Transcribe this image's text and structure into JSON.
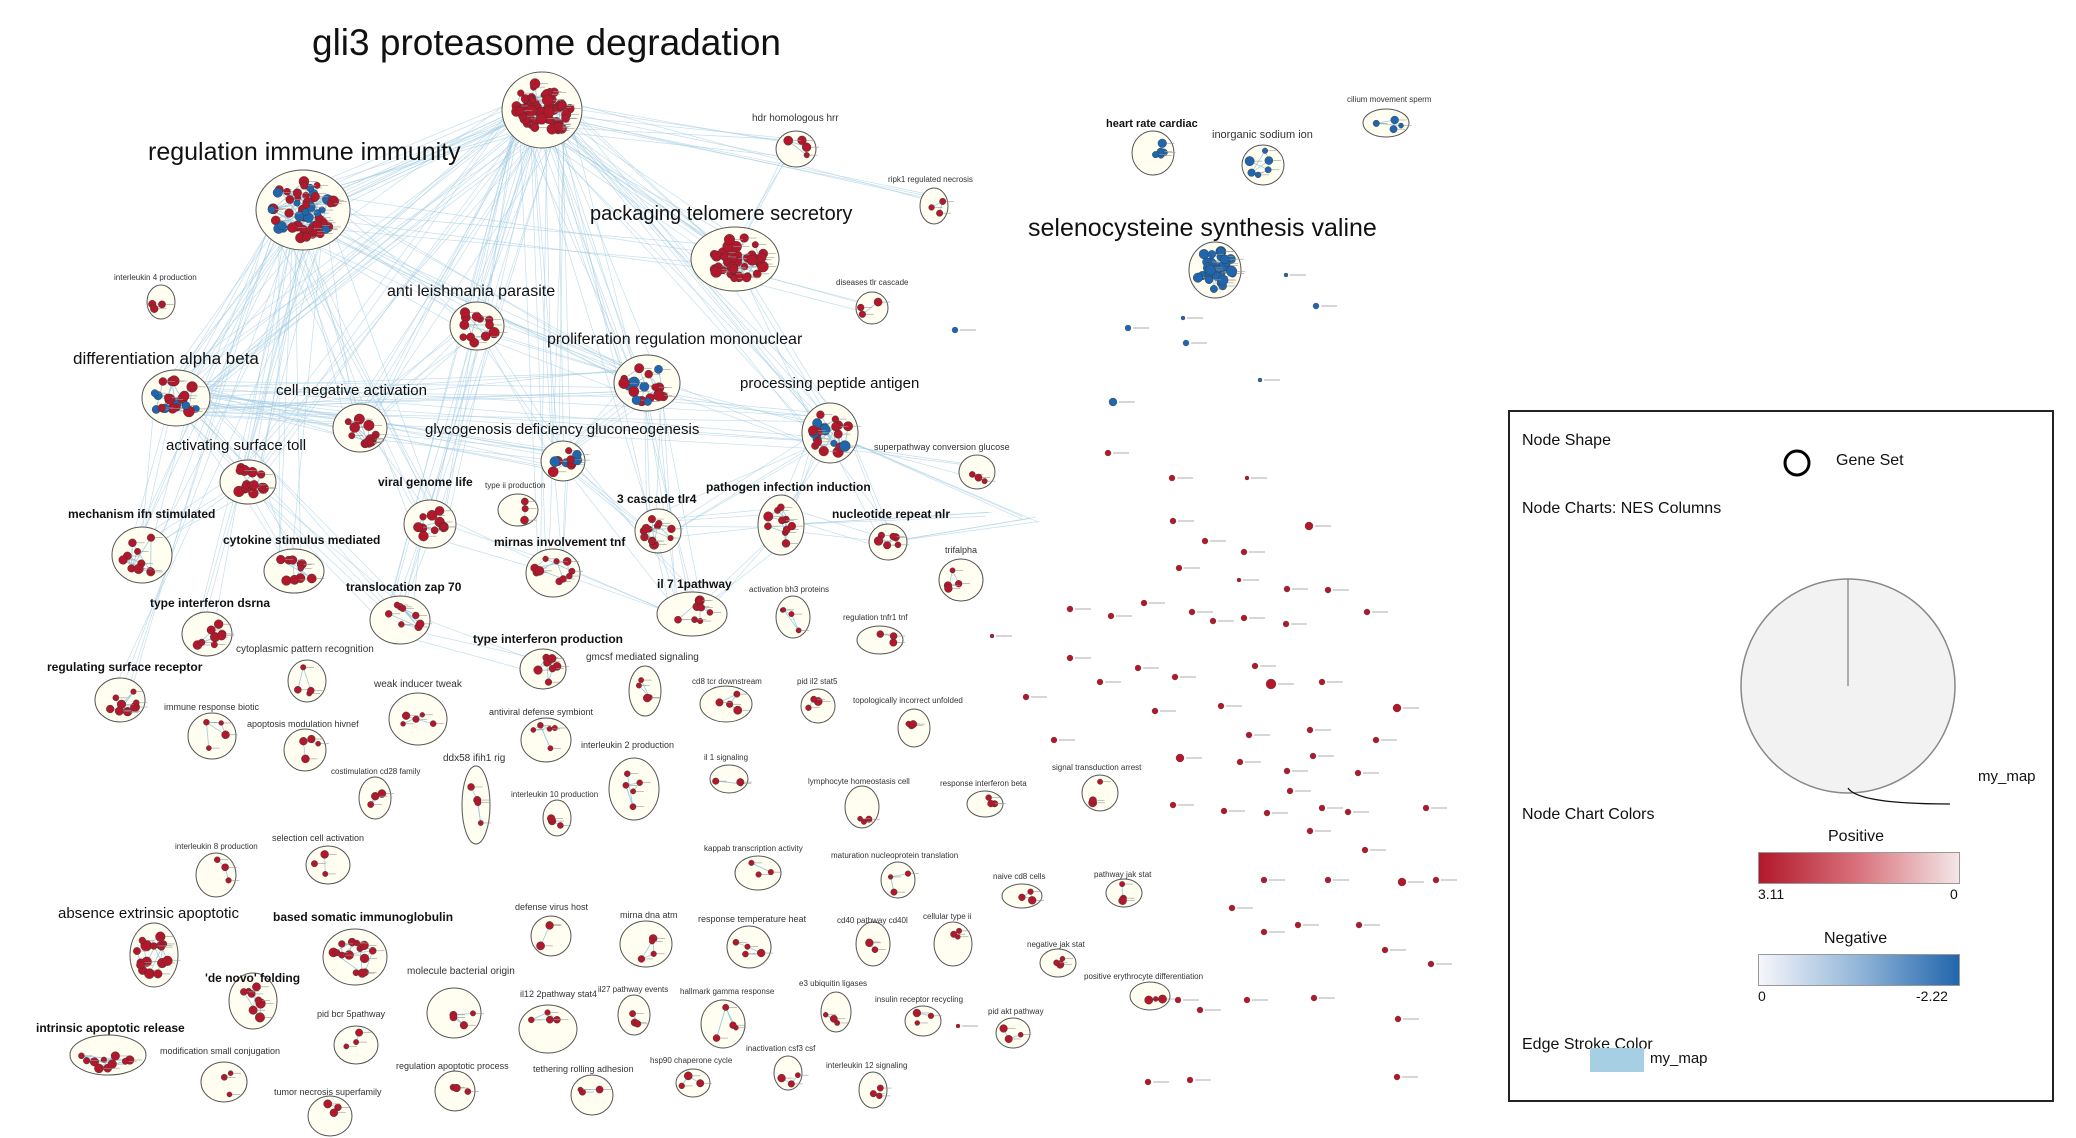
{
  "colors": {
    "positive": "#b2182b",
    "negative": "#2166ac",
    "edge": "#9ecae1",
    "cluster_fill": "#fffef0",
    "pie_fill": "#f0f0f0"
  },
  "clusters": {
    "gli3": "gli3 proteasome degradation",
    "regulation_immune": "regulation immune immunity",
    "packaging_telomere": "packaging telomere secretory",
    "selenocysteine": "selenocysteine synthesis valine",
    "anti_leishmania": "anti leishmania parasite",
    "proliferation": "proliferation regulation mononuclear",
    "differentiation": "differentiation alpha beta",
    "processing_peptide": "processing peptide antigen",
    "cell_negative": "cell negative activation",
    "glycogenosis": "glycogenosis deficiency gluconeogenesis",
    "activating_surface": "activating surface toll",
    "absence_extrinsic": "absence extrinsic apoptotic",
    "viral_genome": "viral genome life",
    "mechanism_ifn": "mechanism ifn stimulated",
    "cytokine_stimulus": "cytokine stimulus mediated",
    "mirnas": "mirnas involvement tnf",
    "cascade_tlr4": "3 cascade tlr4",
    "pathogen_infection": "pathogen infection induction",
    "nucleotide_repeat": "nucleotide repeat nlr",
    "translocation_zap": "translocation zap 70",
    "il7": "il 7 1pathway",
    "type_interferon_dsrna": "type interferon dsrna",
    "type_interferon_production": "type interferon production",
    "regulating_surface": "regulating surface receptor",
    "based_somatic": "based somatic immunoglobulin",
    "de_novo": "'de novo' folding",
    "intrinsic_apoptotic": "intrinsic apoptotic release",
    "heart_rate": "heart rate cardiac",
    "hdr_homologous": "hdr homologous hrr",
    "inorganic_sodium": "inorganic sodium ion",
    "cilium": "cilium movement sperm",
    "ripk1": "ripk1 regulated necrosis",
    "interleukin4": "interleukin 4 production",
    "diseases_tlr": "diseases tlr cascade",
    "superpathway": "superpathway conversion glucose",
    "type_ii": "type ii production",
    "trifalpha": "trifalpha",
    "activation_bh3": "activation bh3 proteins",
    "regulation_tnfr1": "regulation tnfr1 tnf",
    "cytoplasmic": "cytoplasmic pattern recognition",
    "gmcsf": "gmcsf mediated signaling",
    "weak_inducer": "weak inducer tweak",
    "immune_response_biotic": "immune response biotic",
    "cd8_tcr": "cd8 tcr downstream",
    "pid_il2": "pid il2 stat5",
    "topologically": "topologically incorrect unfolded",
    "apoptosis_modulation": "apoptosis modulation hivnef",
    "antiviral_defense": "antiviral defense symbiont",
    "interleukin2": "interleukin 2 production",
    "ddx58": "ddx58 ifih1 rig",
    "il1_signaling": "il 1 signaling",
    "costimulation": "costimulation cd28 family",
    "interleukin10": "interleukin 10 production",
    "lymphocyte_homeostasis": "lymphocyte homeostasis cell",
    "response_interferon_beta": "response interferon beta",
    "signal_transduction": "signal transduction arrest",
    "interleukin8": "interleukin 8 production",
    "selection_cell": "selection cell activation",
    "kappab": "kappab transcription activity",
    "maturation_nucleoprotein": "maturation nucleoprotein translation",
    "naive_cd8": "naive cd8 cells",
    "pathway_jak_stat": "pathway jak stat",
    "defense_virus": "defense virus host",
    "mirna_dna_atm": "mirna dna atm",
    "response_temperature": "response temperature heat",
    "cd40": "cd40 pathway cd40l",
    "cellular_type_ii": "cellular type ii",
    "negative_jak": "negative jak stat",
    "molecule_bacterial": "molecule bacterial origin",
    "positive_erythrocyte": "positive erythrocyte differentiation",
    "il27": "il27 pathway events",
    "hallmark_gamma": "hallmark gamma response",
    "e3_ubiquitin": "e3 ubiquitin ligases",
    "insulin_receptor": "insulin receptor recycling",
    "il12_2pathway": "il12 2pathway stat4",
    "pid_bcr": "pid bcr 5pathway",
    "pid_akt": "pid akt pathway",
    "modification_small": "modification small conjugation",
    "regulation_apoptotic": "regulation apoptotic process",
    "hsp90": "hsp90 chaperone cycle",
    "inactivation_csf3": "inactivation csf3 csf",
    "tethering_rolling": "tethering rolling adhesion",
    "interleukin12_signaling": "interleukin 12 signaling",
    "tumor_necrosis": "tumor necrosis superfamily"
  },
  "legend": {
    "node_shape_title": "Node Shape",
    "gene_set_label": "Gene Set",
    "node_charts_title": "Node Charts: NES Columns",
    "pie_label": "my_map",
    "node_chart_colors_title": "Node Chart Colors",
    "positive_title": "Positive",
    "positive_min": "3.11",
    "positive_max": "0",
    "negative_title": "Negative",
    "negative_min": "0",
    "negative_max": "-2.22",
    "edge_stroke_title": "Edge Stroke Color",
    "edge_stroke_label": "my_map"
  }
}
